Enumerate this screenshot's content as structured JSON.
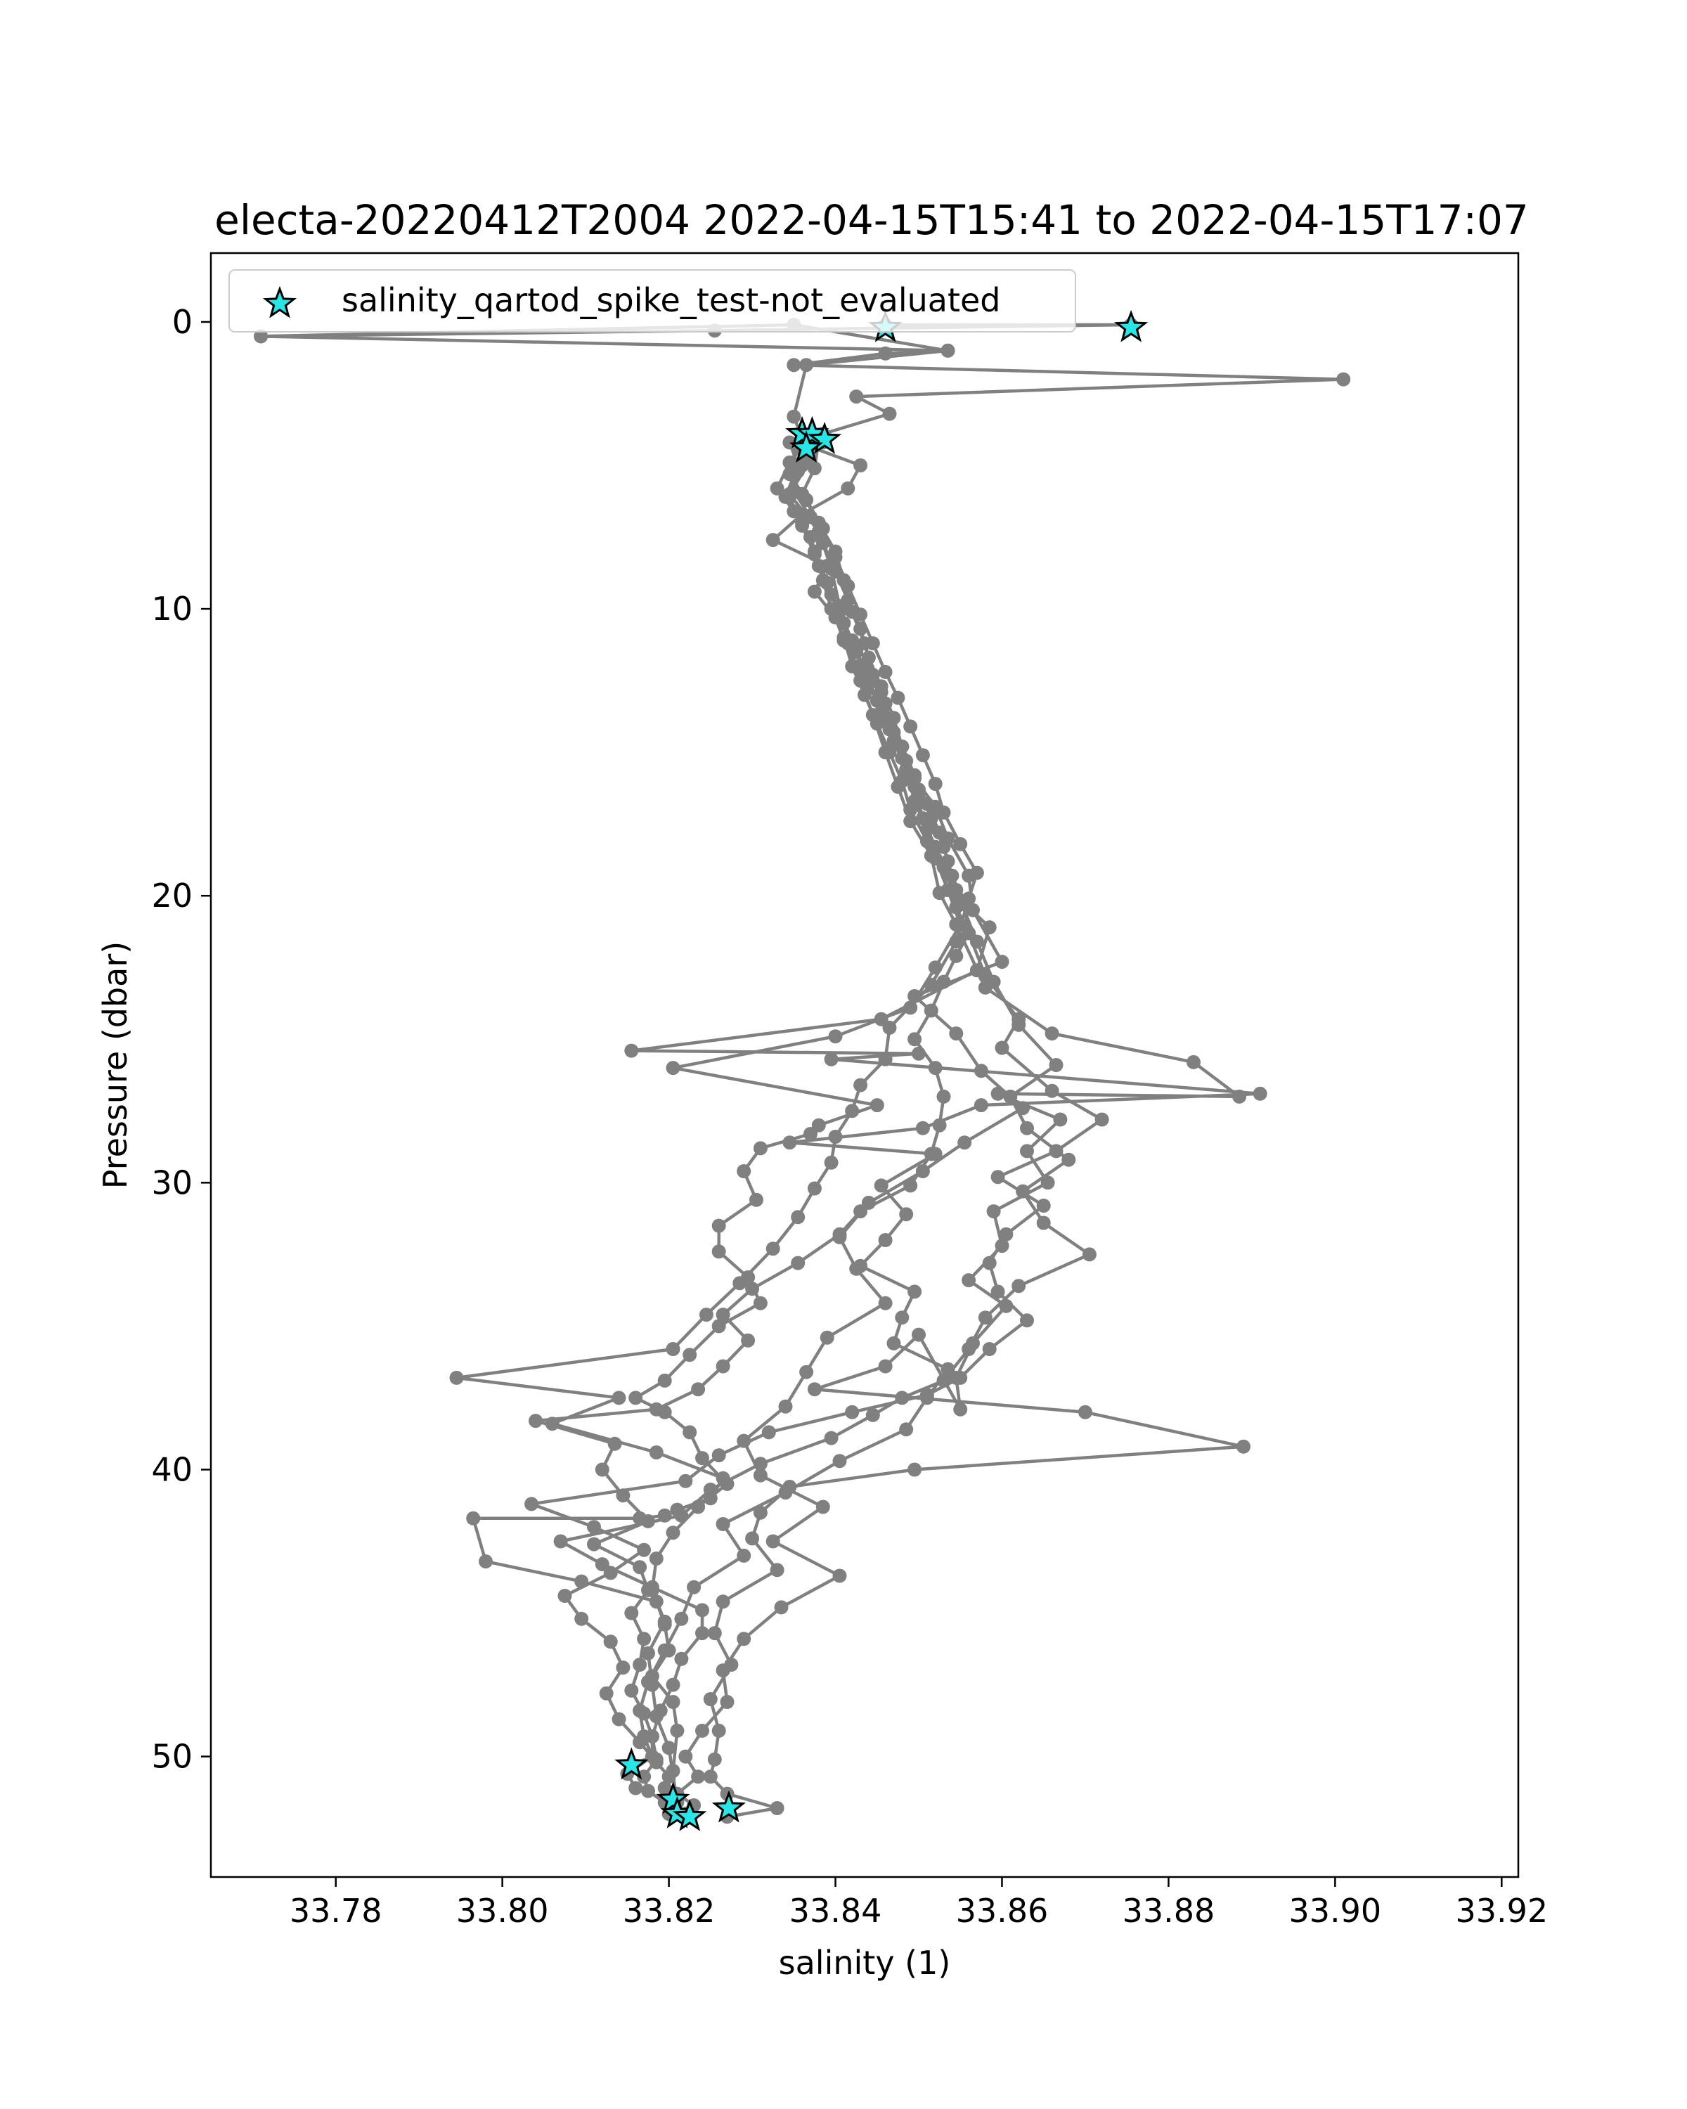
{
  "chart_data": {
    "type": "line",
    "title": "electa-20220412T2004 2022-04-15T15:41 to 2022-04-15T17:07",
    "xlabel": "salinity (1)",
    "ylabel": "Pressure (dbar)",
    "xlim": [
      33.765,
      33.922
    ],
    "ylim": [
      54.2,
      -2.4
    ],
    "y_inverted": true,
    "grid": false,
    "legend_placement": "upper-left",
    "xticks": [
      33.78,
      33.8,
      33.82,
      33.84,
      33.86,
      33.88,
      33.9,
      33.92
    ],
    "xtick_labels": [
      "33.78",
      "33.80",
      "33.82",
      "33.84",
      "33.86",
      "33.88",
      "33.90",
      "33.92"
    ],
    "yticks": [
      0,
      10,
      20,
      30,
      40,
      50
    ],
    "ytick_labels": [
      "0",
      "10",
      "20",
      "30",
      "40",
      "50"
    ],
    "colors": {
      "profile_line": "#808080",
      "flag_fill": "#29e6e6",
      "flag_edge": "#000000"
    },
    "series": [
      {
        "marker": "circle",
        "line": true,
        "x": [
          33.846,
          33.8755,
          33.8255,
          33.771,
          33.8535,
          33.846,
          33.835,
          33.901,
          33.8425,
          33.8465,
          33.8385,
          33.8365,
          33.843,
          33.8415,
          33.836,
          33.8325,
          33.839,
          33.8375,
          33.84,
          33.841,
          33.8425,
          33.8455,
          33.846,
          33.848,
          33.8495,
          33.852,
          33.8535,
          33.856,
          33.8565,
          33.86,
          33.8495,
          33.8545,
          33.8575,
          33.8625,
          33.8555,
          33.8505,
          33.844,
          33.8405,
          33.8425,
          33.846,
          33.839,
          33.8365,
          33.834,
          33.829,
          33.831,
          33.8385,
          33.8325,
          33.8405,
          33.8335,
          33.829,
          33.8265,
          33.827,
          33.824,
          33.822,
          33.8235,
          33.821,
          33.823,
          33.82
        ],
        "y": [
          0.1,
          0.1,
          0.3,
          0.5,
          1.0,
          1.1,
          1.5,
          2.0,
          2.6,
          3.2,
          3.9,
          4.3,
          5.0,
          5.8,
          6.7,
          7.6,
          8.5,
          9.4,
          10.3,
          11.1,
          12.0,
          12.9,
          13.9,
          14.8,
          15.9,
          16.9,
          18.0,
          19.3,
          20.5,
          22.3,
          23.5,
          24.8,
          26.1,
          27.4,
          28.6,
          29.6,
          30.7,
          31.9,
          33.0,
          34.2,
          35.4,
          36.6,
          37.8,
          39.0,
          40.2,
          41.3,
          42.5,
          43.7,
          44.8,
          45.9,
          47.0,
          48.1,
          49.1,
          50.0,
          50.7,
          51.3,
          51.7,
          52.0
        ]
      },
      {
        "marker": "circle",
        "line": true,
        "x": [
          33.771,
          33.835,
          33.8535,
          33.8365,
          33.835,
          33.837,
          33.8345,
          33.838,
          33.8395,
          33.8405,
          33.8415,
          33.843,
          33.8445,
          33.846,
          33.8475,
          33.849,
          33.8515,
          33.8525,
          33.8545,
          33.858,
          33.866,
          33.883,
          33.8885,
          33.8595,
          33.867,
          33.863,
          33.8655,
          33.859,
          33.86,
          33.856,
          33.8605,
          33.8565,
          33.8545,
          33.855,
          33.85,
          33.846,
          33.8375,
          33.87,
          33.889,
          33.8495,
          33.8345,
          33.831,
          33.83,
          33.833,
          33.8265,
          33.8255,
          33.8275,
          33.825,
          33.826,
          33.8255,
          33.825,
          33.827,
          33.833,
          33.827
        ],
        "y": [
          0.5,
          0.1,
          1.0,
          1.5,
          3.3,
          4.8,
          6.0,
          7.3,
          8.6,
          9.9,
          11.2,
          12.5,
          13.7,
          15.0,
          16.2,
          17.4,
          18.6,
          19.9,
          21.0,
          23.2,
          24.8,
          25.8,
          27.0,
          26.9,
          27.8,
          28.9,
          30.0,
          31.0,
          32.2,
          33.4,
          34.3,
          35.6,
          36.8,
          37.9,
          35.3,
          36.4,
          37.2,
          38.0,
          39.2,
          40.0,
          40.6,
          41.5,
          42.4,
          43.5,
          44.6,
          45.7,
          46.8,
          48.0,
          49.1,
          50.1,
          50.7,
          51.3,
          51.8,
          52.1
        ]
      },
      {
        "marker": "circle",
        "line": true,
        "x": [
          33.8345,
          33.8355,
          33.834,
          33.836,
          33.8375,
          33.8385,
          33.8395,
          33.841,
          33.842,
          33.8435,
          33.845,
          33.8465,
          33.848,
          33.849,
          33.851,
          33.853,
          33.8545,
          33.8585,
          33.857,
          33.8455,
          33.8155,
          33.85,
          33.8395,
          33.891,
          33.8575,
          33.8505,
          33.8345,
          33.852,
          33.8455,
          33.8485,
          33.846,
          33.843,
          33.8495,
          33.848,
          33.847,
          33.8535,
          33.851,
          33.8485,
          33.8405,
          33.834,
          33.8265,
          33.829,
          33.823,
          33.8215,
          33.8195,
          33.8175,
          33.8165,
          33.817,
          33.818,
          33.815,
          33.816
        ],
        "y": [
          4.2,
          5.0,
          6.1,
          7.0,
          8.0,
          9.0,
          10.0,
          11.0,
          12.0,
          13.0,
          14.0,
          15.0,
          16.0,
          17.0,
          18.1,
          19.0,
          20.0,
          21.1,
          22.6,
          24.3,
          25.4,
          25.5,
          25.7,
          26.9,
          27.3,
          28.1,
          28.6,
          29.0,
          30.1,
          31.1,
          32.0,
          32.9,
          33.8,
          34.7,
          35.6,
          36.5,
          37.5,
          38.6,
          39.7,
          40.8,
          41.9,
          43.0,
          44.1,
          45.2,
          46.3,
          47.4,
          48.4,
          49.3,
          50.0,
          50.6,
          51.1
        ]
      },
      {
        "marker": "circle",
        "line": true,
        "x": [
          33.8365,
          33.8345,
          33.833,
          33.835,
          33.837,
          33.838,
          33.8395,
          33.841,
          33.8425,
          33.844,
          33.8455,
          33.847,
          33.8485,
          33.8495,
          33.851,
          33.852,
          33.8535,
          33.855,
          33.852,
          33.849,
          33.84,
          33.8205,
          33.845,
          33.838,
          33.837,
          33.831,
          33.829,
          33.8305,
          33.826,
          33.826,
          33.8295,
          33.831,
          33.826,
          33.8225,
          33.8195,
          33.816,
          33.8195,
          33.8225,
          33.824,
          33.827,
          33.8235,
          33.8205,
          33.8185,
          33.818,
          33.8195,
          33.8175,
          33.818,
          33.8185,
          33.82,
          33.821
        ],
        "y": [
          4.0,
          4.9,
          5.8,
          6.6,
          7.5,
          8.5,
          9.5,
          10.5,
          11.5,
          12.6,
          13.6,
          14.6,
          15.6,
          16.7,
          17.7,
          18.7,
          19.8,
          21.0,
          22.5,
          23.9,
          24.9,
          26.0,
          27.3,
          28.0,
          28.3,
          28.8,
          29.6,
          30.6,
          31.5,
          32.4,
          33.3,
          34.2,
          35.0,
          36.0,
          36.9,
          37.5,
          38.0,
          38.7,
          39.6,
          40.5,
          41.3,
          42.2,
          43.1,
          44.2,
          45.3,
          46.4,
          47.5,
          48.6,
          49.7,
          51.6
        ]
      },
      {
        "marker": "circle",
        "line": true,
        "x": [
          33.837,
          33.8355,
          33.8345,
          33.836,
          33.8375,
          33.839,
          33.8405,
          33.842,
          33.8435,
          33.845,
          33.8465,
          33.848,
          33.8495,
          33.8505,
          33.852,
          33.8535,
          33.8545,
          33.856,
          33.8545,
          33.853,
          33.8515,
          33.8495,
          33.852,
          33.853,
          33.8525,
          33.8515,
          33.849,
          33.843,
          33.8405,
          33.8355,
          33.83,
          33.8265,
          33.8295,
          33.8265,
          33.8235,
          33.8185,
          33.804,
          33.8135,
          33.812,
          33.8145,
          33.8175,
          33.811,
          33.8165,
          33.8175,
          33.8155,
          33.817,
          33.8165,
          33.8155,
          33.817,
          33.818,
          33.818,
          33.8155
        ],
        "y": [
          4.3,
          5.2,
          6.1,
          7.1,
          8.1,
          9.1,
          10.1,
          11.1,
          12.1,
          13.2,
          14.2,
          15.2,
          16.2,
          17.3,
          18.3,
          19.3,
          20.4,
          21.3,
          22.1,
          23.0,
          24.0,
          25.0,
          26.0,
          27.0,
          28.0,
          29.0,
          30.1,
          31.0,
          31.8,
          32.8,
          33.7,
          34.6,
          35.5,
          36.4,
          37.2,
          37.9,
          38.3,
          39.1,
          40.0,
          40.9,
          41.8,
          42.6,
          43.4,
          44.2,
          45.0,
          45.9,
          46.8,
          47.7,
          48.5,
          49.3,
          50.0,
          50.3
        ]
      },
      {
        "marker": "circle",
        "line": true,
        "x": [
          33.838,
          33.8375,
          33.836,
          33.838,
          33.84,
          33.841,
          33.842,
          33.8435,
          33.8445,
          33.846,
          33.847,
          33.8485,
          33.85,
          33.8515,
          33.853,
          33.854,
          33.8555,
          33.856,
          33.858,
          33.862,
          33.86,
          33.866,
          33.872,
          33.8665,
          33.8595,
          33.865,
          33.8605,
          33.8585,
          33.8595,
          33.863,
          33.8585,
          33.855,
          33.851,
          33.842,
          33.832,
          33.826,
          33.822,
          33.8035,
          33.811,
          33.817,
          33.813,
          33.8075,
          33.8095,
          33.813,
          33.8145,
          33.8125,
          33.814,
          33.8165,
          33.8185,
          33.82,
          33.8195
        ],
        "y": [
          4.1,
          5.1,
          6.0,
          7.0,
          8.0,
          9.0,
          10.1,
          11.2,
          12.3,
          13.3,
          14.3,
          15.3,
          16.3,
          17.3,
          18.3,
          19.3,
          20.3,
          21.3,
          22.8,
          24.3,
          25.3,
          26.8,
          27.8,
          28.9,
          29.8,
          30.8,
          31.8,
          32.8,
          33.8,
          34.8,
          35.8,
          36.8,
          37.4,
          38.0,
          38.7,
          39.5,
          40.4,
          41.2,
          42.0,
          42.8,
          43.6,
          44.4,
          45.2,
          46.0,
          46.9,
          47.8,
          48.7,
          49.5,
          50.2,
          50.7,
          51.1
        ]
      },
      {
        "marker": "circle",
        "line": true,
        "x": [
          33.8385,
          33.836,
          33.835,
          33.837,
          33.8385,
          33.84,
          33.8415,
          33.843,
          33.844,
          33.8455,
          33.847,
          33.848,
          33.8495,
          33.851,
          33.8525,
          33.8535,
          33.8545,
          33.857,
          33.859,
          33.862,
          33.8665,
          33.861,
          33.863,
          33.868,
          33.8625,
          33.865,
          33.8705,
          33.862,
          33.858,
          33.856,
          33.853,
          33.848,
          33.8445,
          33.8395,
          33.831,
          33.825,
          33.8215,
          33.807,
          33.812,
          33.818,
          33.824,
          33.824,
          33.8215,
          33.8205,
          33.819,
          33.818,
          33.8185,
          33.817,
          33.8175,
          33.8195,
          33.821
        ],
        "y": [
          4.2,
          5.0,
          5.9,
          6.8,
          7.7,
          8.7,
          9.7,
          10.7,
          11.7,
          12.7,
          13.8,
          14.8,
          15.8,
          16.8,
          17.8,
          18.8,
          19.8,
          21.6,
          23.0,
          24.5,
          25.9,
          27.0,
          28.1,
          29.2,
          30.3,
          31.4,
          32.5,
          33.6,
          34.7,
          35.8,
          36.9,
          37.5,
          38.1,
          38.9,
          39.8,
          40.7,
          41.6,
          42.5,
          43.3,
          44.1,
          44.9,
          45.7,
          46.6,
          47.5,
          48.4,
          49.3,
          50.1,
          50.7,
          51.2,
          51.6,
          52.0
        ]
      },
      {
        "marker": "circle",
        "line": true,
        "x": [
          33.8355,
          33.8345,
          33.8365,
          33.8385,
          33.84,
          33.8415,
          33.843,
          33.8445,
          33.846,
          33.8475,
          33.849,
          33.8505,
          33.852,
          33.853,
          33.855,
          33.857,
          33.856,
          33.8545,
          33.8515,
          33.8465,
          33.846,
          33.843,
          33.842,
          33.84,
          33.8395,
          33.8375,
          33.8355,
          33.8325,
          33.8285,
          33.8245,
          33.8205,
          33.7945,
          33.814,
          33.806,
          33.8185,
          33.8265,
          33.825,
          33.821,
          33.8195,
          33.8165,
          33.7965,
          33.798,
          33.8095,
          33.8185,
          33.8195,
          33.82,
          33.818,
          33.8205,
          33.821,
          33.8205
        ],
        "y": [
          4.4,
          5.3,
          6.2,
          7.2,
          8.2,
          9.2,
          10.2,
          11.2,
          12.2,
          13.1,
          14.1,
          15.1,
          16.1,
          17.1,
          18.2,
          19.2,
          20.1,
          21.6,
          23.1,
          24.6,
          25.7,
          26.6,
          27.5,
          28.4,
          29.3,
          30.2,
          31.2,
          32.3,
          33.5,
          34.6,
          35.8,
          36.8,
          37.5,
          38.4,
          39.4,
          40.3,
          41.0,
          41.4,
          41.6,
          41.7,
          41.7,
          43.2,
          43.9,
          44.6,
          45.4,
          46.3,
          47.2,
          48.1,
          49.1,
          50.5
        ]
      }
    ],
    "flagged": {
      "label": "salinity_qartod_spike_test-not_evaluated",
      "marker": "star",
      "x": [
        33.846,
        33.8755,
        33.836,
        33.8372,
        33.8387,
        33.8365,
        33.8155,
        33.8205,
        33.821,
        33.8225,
        33.8272
      ],
      "y": [
        0.2,
        0.2,
        3.9,
        3.9,
        4.1,
        4.4,
        50.3,
        51.5,
        52.0,
        52.1,
        51.8
      ]
    }
  }
}
